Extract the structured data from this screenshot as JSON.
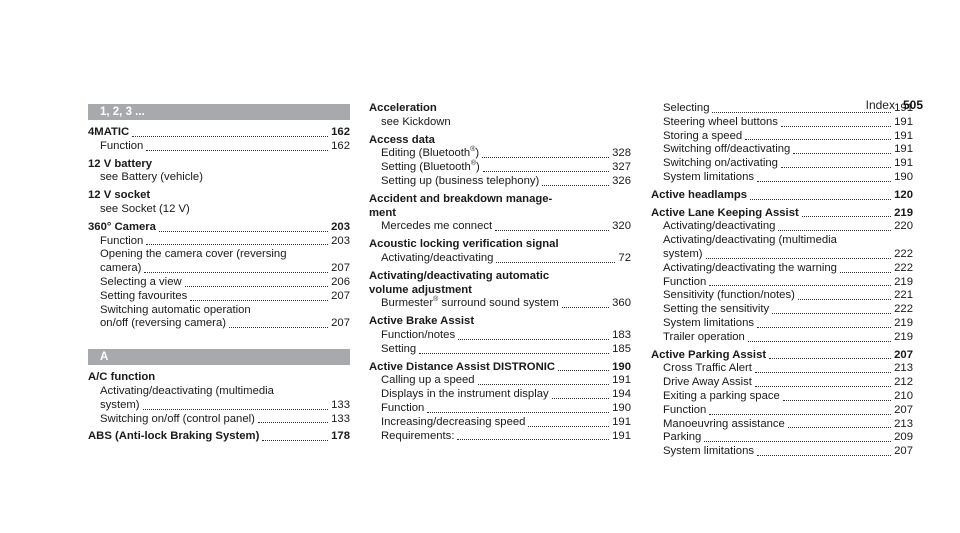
{
  "header": {
    "title": "Index",
    "page": "505"
  },
  "col1": {
    "band1": "1, 2, 3 ...",
    "e_4matic": {
      "label": "4MATIC",
      "page": "162",
      "sub": [
        {
          "text": "Function",
          "page": "162"
        }
      ]
    },
    "e_12vbat": {
      "label": "12 V battery",
      "see": "see Battery (vehicle)"
    },
    "e_12vsock": {
      "label": "12 V socket",
      "see": "see Socket (12 V)"
    },
    "e_360": {
      "label": "360° Camera",
      "page": "203",
      "sub": [
        {
          "text": "Function",
          "page": "203"
        },
        {
          "text1": "Opening the camera cover (reversing",
          "text2": "camera)",
          "page": "207"
        },
        {
          "text": "Selecting a view",
          "page": "206"
        },
        {
          "text": "Setting favourites",
          "page": "207"
        },
        {
          "text1": "Switching automatic operation",
          "text2": "on/off (reversing camera)",
          "page": "207"
        }
      ]
    },
    "band2": "A",
    "e_ac": {
      "label": "A/C function",
      "sub": [
        {
          "text1": "Activating/deactivating (multimedia",
          "text2": "system)",
          "page": "133"
        },
        {
          "text": "Switching on/off (control panel)",
          "page": "133"
        }
      ]
    },
    "e_abs": {
      "label": "ABS (Anti-lock Braking System)",
      "page": "178"
    }
  },
  "col2": {
    "e_accel": {
      "label": "Acceleration",
      "see": "see Kickdown"
    },
    "e_access": {
      "label": "Access data",
      "sub": [
        {
          "text": "Editing (Bluetooth",
          "sup": "®",
          "text_after": ")",
          "page": "328"
        },
        {
          "text": "Setting (Bluetooth",
          "sup": "®",
          "text_after": ")",
          "page": "327"
        },
        {
          "text": "Setting up (business telephony)",
          "page": "326"
        }
      ]
    },
    "e_accident": {
      "label1": "Accident and breakdown manage-",
      "label2": "ment",
      "sub": [
        {
          "text": "Mercedes me connect",
          "page": "320"
        }
      ]
    },
    "e_acoustic": {
      "label": "Acoustic locking verification signal",
      "sub": [
        {
          "text": "Activating/deactivating",
          "page": "72"
        }
      ]
    },
    "e_actauto": {
      "label1": "Activating/deactivating automatic",
      "label2": "volume adjustment",
      "sub": [
        {
          "text": "Burmester",
          "sup": "®",
          "text_after": " surround sound system",
          "page": "360"
        }
      ]
    },
    "e_brake": {
      "label": "Active Brake Assist",
      "sub": [
        {
          "text": "Function/notes",
          "page": "183"
        },
        {
          "text": "Setting",
          "page": "185"
        }
      ]
    },
    "e_distronic": {
      "label": "Active Distance Assist DISTRONIC",
      "page": "190",
      "sub": [
        {
          "text": "Calling up a speed",
          "page": "191"
        },
        {
          "text": "Displays in the instrument display",
          "page": "194"
        },
        {
          "text": "Function",
          "page": "190"
        },
        {
          "text": "Increasing/decreasing speed",
          "page": "191"
        },
        {
          "text": "Requirements:",
          "page": "191"
        }
      ]
    }
  },
  "col3": {
    "cont_sub": [
      {
        "text": "Selecting",
        "page": "191"
      },
      {
        "text": "Steering wheel buttons",
        "page": "191"
      },
      {
        "text": "Storing a speed",
        "page": "191"
      },
      {
        "text": "Switching off/deactivating",
        "page": "191"
      },
      {
        "text": "Switching on/activating",
        "page": "191"
      },
      {
        "text": "System limitations",
        "page": "190"
      }
    ],
    "e_headlamps": {
      "label": "Active headlamps",
      "page": "120"
    },
    "e_lane": {
      "label": "Active Lane Keeping Assist",
      "page": "219",
      "sub": [
        {
          "text": "Activating/deactivating",
          "page": "220"
        },
        {
          "text1": "Activating/deactivating (multimedia",
          "text2": "system)",
          "page": "222"
        },
        {
          "text": "Activating/deactivating the warning",
          "page": "222"
        },
        {
          "text": "Function",
          "page": "219"
        },
        {
          "text": "Sensitivity (function/notes)",
          "page": "221"
        },
        {
          "text": "Setting the sensitivity",
          "page": "222"
        },
        {
          "text": "System limitations",
          "page": "219"
        },
        {
          "text": "Trailer operation",
          "page": "219"
        }
      ]
    },
    "e_parking": {
      "label": "Active Parking Assist",
      "page": "207",
      "sub": [
        {
          "text": "Cross Traffic Alert",
          "page": "213"
        },
        {
          "text": "Drive Away Assist",
          "page": "212"
        },
        {
          "text": "Exiting a parking space",
          "page": "210"
        },
        {
          "text": "Function",
          "page": "207"
        },
        {
          "text": "Manoeuvring assistance",
          "page": "213"
        },
        {
          "text": "Parking",
          "page": "209"
        },
        {
          "text": "System limitations",
          "page": "207"
        }
      ]
    }
  }
}
